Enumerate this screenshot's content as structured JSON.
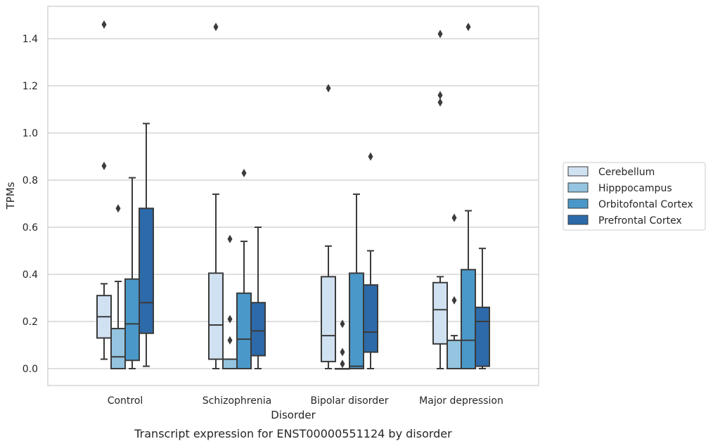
{
  "chart_data": {
    "type": "box",
    "caption": "Transcript expression for ENST00000551124 by disorder",
    "xlabel": "Disorder",
    "ylabel": "TPMs",
    "ylim": [
      -0.07,
      1.54
    ],
    "yticks": [
      "0.0",
      "0.2",
      "0.4",
      "0.6",
      "0.8",
      "1.0",
      "1.2",
      "1.4"
    ],
    "grid": "horizontal",
    "legend_position": "right",
    "categories": [
      "Control",
      "Schizophrenia",
      "Bipolar disorder",
      "Major depression"
    ],
    "series": [
      {
        "name": "Cerebellum",
        "color": "#d0e1f2",
        "boxes": [
          {
            "whisker_low": 0.04,
            "q1": 0.13,
            "median": 0.22,
            "q3": 0.31,
            "whisker_high": 0.36,
            "outliers": [
              1.46,
              0.86
            ]
          },
          {
            "whisker_low": 0.0,
            "q1": 0.04,
            "median": 0.185,
            "q3": 0.405,
            "whisker_high": 0.74,
            "outliers": [
              1.45
            ]
          },
          {
            "whisker_low": 0.0,
            "q1": 0.03,
            "median": 0.14,
            "q3": 0.39,
            "whisker_high": 0.52,
            "outliers": [
              1.19
            ]
          },
          {
            "whisker_low": 0.0,
            "q1": 0.105,
            "median": 0.25,
            "q3": 0.365,
            "whisker_high": 0.39,
            "outliers": [
              1.42,
              1.16,
              1.13
            ]
          }
        ]
      },
      {
        "name": "Hipppocampus",
        "color": "#94c4df",
        "boxes": [
          {
            "whisker_low": 0.0,
            "q1": 0.0,
            "median": 0.05,
            "q3": 0.17,
            "whisker_high": 0.37,
            "outliers": [
              0.68
            ]
          },
          {
            "whisker_low": 0.0,
            "q1": 0.0,
            "median": 0.0,
            "q3": 0.04,
            "whisker_high": 0.04,
            "outliers": [
              0.55,
              0.21,
              0.12
            ]
          },
          {
            "whisker_low": 0.0,
            "q1": 0.0,
            "median": 0.0,
            "q3": 0.0,
            "whisker_high": 0.0,
            "outliers": [
              0.19,
              0.07,
              0.02
            ]
          },
          {
            "whisker_low": 0.0,
            "q1": 0.0,
            "median": 0.0,
            "q3": 0.12,
            "whisker_high": 0.14,
            "outliers": [
              0.64,
              0.29
            ]
          }
        ]
      },
      {
        "name": "Orbitofontal Cortex",
        "color": "#4a98c9",
        "boxes": [
          {
            "whisker_low": 0.0,
            "q1": 0.035,
            "median": 0.19,
            "q3": 0.38,
            "whisker_high": 0.81,
            "outliers": []
          },
          {
            "whisker_low": 0.0,
            "q1": 0.0,
            "median": 0.125,
            "q3": 0.32,
            "whisker_high": 0.54,
            "outliers": [
              0.83
            ]
          },
          {
            "whisker_low": 0.0,
            "q1": 0.0,
            "median": 0.01,
            "q3": 0.405,
            "whisker_high": 0.74,
            "outliers": []
          },
          {
            "whisker_low": 0.0,
            "q1": 0.0,
            "median": 0.12,
            "q3": 0.42,
            "whisker_high": 0.67,
            "outliers": [
              1.45
            ]
          }
        ]
      },
      {
        "name": "Prefrontal Cortex",
        "color": "#2c6aa9",
        "boxes": [
          {
            "whisker_low": 0.01,
            "q1": 0.15,
            "median": 0.28,
            "q3": 0.68,
            "whisker_high": 1.04,
            "outliers": []
          },
          {
            "whisker_low": 0.0,
            "q1": 0.055,
            "median": 0.16,
            "q3": 0.28,
            "whisker_high": 0.6,
            "outliers": []
          },
          {
            "whisker_low": 0.0,
            "q1": 0.07,
            "median": 0.155,
            "q3": 0.355,
            "whisker_high": 0.5,
            "outliers": [
              0.9
            ]
          },
          {
            "whisker_low": 0.0,
            "q1": 0.01,
            "median": 0.2,
            "q3": 0.26,
            "whisker_high": 0.51,
            "outliers": []
          }
        ]
      }
    ]
  }
}
